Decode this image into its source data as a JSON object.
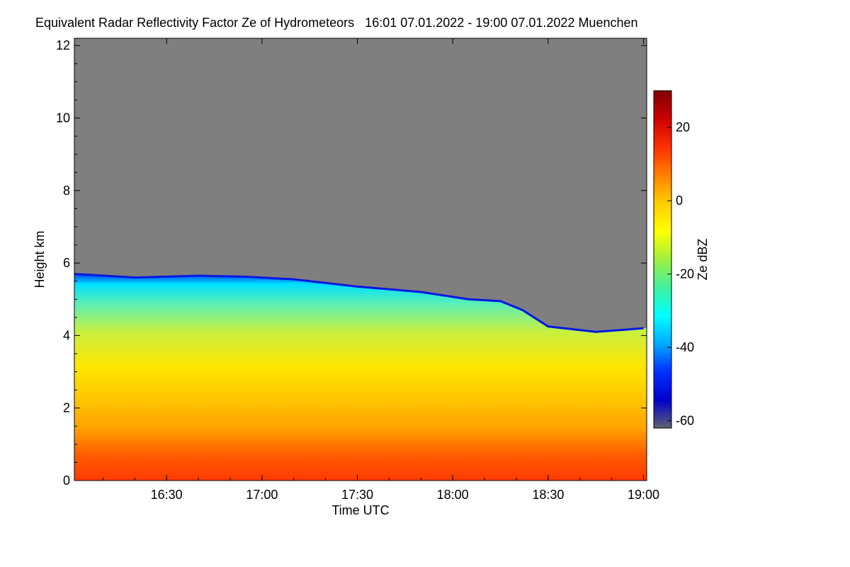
{
  "chart_data": {
    "type": "heatmap",
    "title": "Equivalent Radar Reflectivity Factor Ze of Hydrometeors   16:01 07.01.2022 - 19:00 07.01.2022 Muenchen",
    "xlabel": "Time UTC",
    "ylabel": "Height km",
    "colorbar_label": "Ze dBZ",
    "xlim": [
      "16:01",
      "19:01"
    ],
    "ylim": [
      0,
      12.2
    ],
    "x_ticks": [
      "16:30",
      "17:00",
      "17:30",
      "18:00",
      "18:30",
      "19:00"
    ],
    "y_ticks": [
      0,
      2,
      4,
      6,
      8,
      10,
      12
    ],
    "colorbar_range": [
      -62,
      30
    ],
    "colorbar_ticks": [
      20,
      0,
      -20,
      -40,
      -60
    ],
    "no_data_color": "#7f7f7f",
    "colormap": [
      "#606070",
      "#0000cc",
      "#0030ff",
      "#00aaff",
      "#00ffff",
      "#40f0a0",
      "#a0f040",
      "#ffff00",
      "#ffcc00",
      "#ff8000",
      "#ff3000",
      "#cc0000",
      "#800000"
    ],
    "echo_top_km": [
      {
        "time": "16:01",
        "top": 5.7
      },
      {
        "time": "16:20",
        "top": 5.6
      },
      {
        "time": "16:40",
        "top": 5.65
      },
      {
        "time": "16:55",
        "top": 5.62
      },
      {
        "time": "17:10",
        "top": 5.55
      },
      {
        "time": "17:30",
        "top": 5.35
      },
      {
        "time": "17:50",
        "top": 5.2
      },
      {
        "time": "18:05",
        "top": 5.0
      },
      {
        "time": "18:15",
        "top": 4.95
      },
      {
        "time": "18:22",
        "top": 4.7
      },
      {
        "time": "18:30",
        "top": 4.25
      },
      {
        "time": "18:45",
        "top": 4.1
      },
      {
        "time": "19:00",
        "top": 4.2
      }
    ]
  }
}
